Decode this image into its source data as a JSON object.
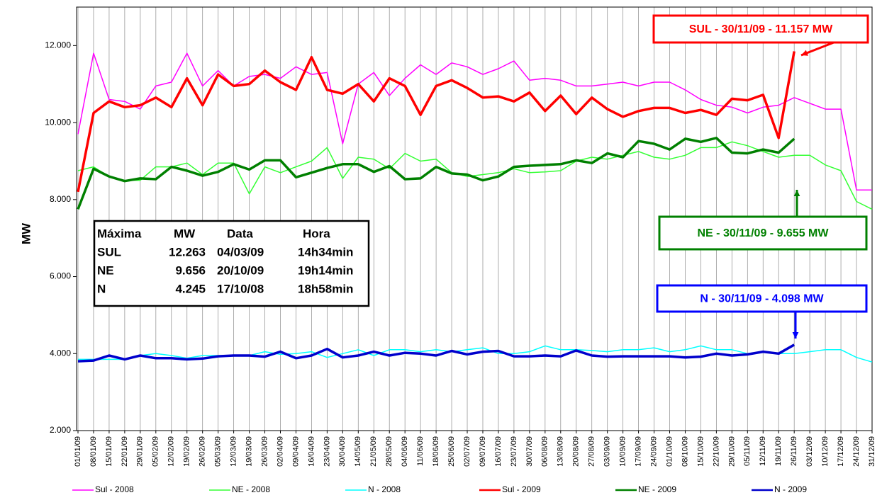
{
  "chart_data": {
    "type": "line",
    "y_label": "MW",
    "categories": [
      "01/01/09",
      "08/01/09",
      "15/01/09",
      "22/01/09",
      "29/01/09",
      "05/02/09",
      "12/02/09",
      "19/02/09",
      "26/02/09",
      "05/03/09",
      "12/03/09",
      "19/03/09",
      "26/03/09",
      "02/04/09",
      "09/04/09",
      "16/04/09",
      "23/04/09",
      "30/04/09",
      "14/05/09",
      "21/05/09",
      "28/05/09",
      "04/06/09",
      "11/06/09",
      "18/06/09",
      "25/06/09",
      "02/07/09",
      "09/07/09",
      "16/07/09",
      "23/07/09",
      "30/07/09",
      "06/08/09",
      "13/08/09",
      "20/08/09",
      "27/08/09",
      "03/09/09",
      "10/09/09",
      "17/09/09",
      "24/09/09",
      "01/10/09",
      "08/10/09",
      "15/10/09",
      "22/10/09",
      "29/10/09",
      "05/11/09",
      "12/11/09",
      "19/11/09",
      "26/11/09",
      "03/12/09",
      "10/12/09",
      "17/12/09",
      "24/12/09",
      "31/12/09"
    ],
    "series": [
      {
        "name": "Sul - 2008",
        "color": "#ff00ff",
        "values": [
          9700,
          11800,
          10600,
          10550,
          10350,
          10950,
          11050,
          11800,
          10950,
          11350,
          10950,
          11200,
          11250,
          11150,
          11450,
          11250,
          11300,
          9450,
          11000,
          11300,
          10700,
          11150,
          11500,
          11250,
          11550,
          11450,
          11250,
          11400,
          11600,
          11100,
          11150,
          11100,
          10950,
          10950,
          11000,
          11050,
          10950,
          11050,
          11050,
          10850,
          10600,
          10450,
          10400,
          10250,
          10400,
          10450,
          10650,
          10500,
          10350,
          10350,
          8250,
          8250
        ]
      },
      {
        "name": "NE - 2008",
        "color": "#33ff33",
        "values": [
          8750,
          8850,
          8600,
          8500,
          8500,
          8850,
          8850,
          8950,
          8650,
          8950,
          8950,
          8150,
          8850,
          8700,
          8850,
          9000,
          9350,
          8550,
          9100,
          9050,
          8800,
          9200,
          9000,
          9050,
          8700,
          8600,
          8650,
          8700,
          8800,
          8700,
          8720,
          8750,
          9000,
          9100,
          9050,
          9150,
          9250,
          9100,
          9050,
          9150,
          9350,
          9350,
          9500,
          9400,
          9250,
          9100,
          9150,
          9150,
          8900,
          8750,
          7950,
          7750
        ]
      },
      {
        "name": "N - 2008",
        "color": "#00ffff",
        "values": [
          3850,
          3850,
          3850,
          3850,
          3950,
          4000,
          3950,
          3880,
          3950,
          3950,
          3950,
          3950,
          4050,
          3980,
          4000,
          4050,
          3900,
          4000,
          4100,
          3950,
          4100,
          4100,
          4050,
          4100,
          4050,
          4100,
          4150,
          4000,
          4000,
          4050,
          4200,
          4100,
          4100,
          4080,
          4050,
          4100,
          4100,
          4150,
          4050,
          4100,
          4200,
          4100,
          4100,
          4000,
          4050,
          4000,
          4000,
          4050,
          4100,
          4100,
          3900,
          3780
        ]
      },
      {
        "name": "Sul - 2009",
        "color": "#ff0000",
        "values": [
          8200,
          10250,
          10550,
          10400,
          10450,
          10650,
          10400,
          11150,
          10450,
          11250,
          10950,
          11000,
          11350,
          11050,
          10850,
          11700,
          10850,
          10750,
          11000,
          10550,
          11150,
          10950,
          10200,
          10950,
          11100,
          10900,
          10650,
          10680,
          10550,
          10780,
          10300,
          10700,
          10220,
          10650,
          10350,
          10150,
          10300,
          10380,
          10380,
          10250,
          10330,
          10200,
          10620,
          10580,
          10720,
          9600,
          11850,
          null,
          null,
          null,
          null,
          null
        ]
      },
      {
        "name": "NE - 2009",
        "color": "#008000",
        "values": [
          7750,
          8800,
          8600,
          8480,
          8550,
          8530,
          8850,
          8750,
          8620,
          8720,
          8920,
          8780,
          9020,
          9020,
          8580,
          8700,
          8820,
          8920,
          8920,
          8720,
          8870,
          8530,
          8550,
          8850,
          8680,
          8650,
          8500,
          8600,
          8850,
          8880,
          8900,
          8920,
          9020,
          8950,
          9200,
          9100,
          9520,
          9450,
          9300,
          9580,
          9500,
          9600,
          9220,
          9200,
          9300,
          9220,
          9580,
          null,
          null,
          null,
          null,
          null
        ]
      },
      {
        "name": "N - 2009",
        "color": "#0000cc",
        "values": [
          3800,
          3820,
          3950,
          3850,
          3950,
          3880,
          3880,
          3850,
          3870,
          3930,
          3950,
          3950,
          3920,
          4050,
          3880,
          3950,
          4120,
          3900,
          3950,
          4050,
          3950,
          4020,
          4000,
          3950,
          4070,
          3980,
          4050,
          4070,
          3930,
          3930,
          3950,
          3930,
          4080,
          3950,
          3920,
          3930,
          3930,
          3930,
          3930,
          3900,
          3920,
          4000,
          3950,
          3980,
          4050,
          4000,
          4230,
          null,
          null,
          null,
          null,
          null
        ]
      }
    ],
    "ylim": [
      2000,
      13000
    ],
    "yticks": [
      {
        "value": 2000,
        "label": "2.000"
      },
      {
        "value": 4000,
        "label": "4.000"
      },
      {
        "value": 6000,
        "label": "6.000"
      },
      {
        "value": 8000,
        "label": "8.000"
      },
      {
        "value": 10000,
        "label": "10.000"
      },
      {
        "value": 12000,
        "label": "12.000"
      }
    ],
    "grid": "x",
    "legend": "bottom",
    "annotations": [
      {
        "text": "SUL - 30/11/09 - 11.157 MW",
        "color": "#ff0000"
      },
      {
        "text": "NE - 30/11/09 - 9.655 MW",
        "color": "#008000"
      },
      {
        "text": "N - 30/11/09 - 4.098 MW",
        "color": "#0000ff"
      }
    ],
    "table": {
      "header": [
        "Máxima",
        "MW",
        "Data",
        "Hora"
      ],
      "rows": [
        [
          "SUL",
          "12.263",
          "04/03/09",
          "14h34min"
        ],
        [
          "NE",
          "9.656",
          "20/10/09",
          "19h14min"
        ],
        [
          "N",
          "4.245",
          "17/10/08",
          "18h58min"
        ]
      ]
    }
  }
}
